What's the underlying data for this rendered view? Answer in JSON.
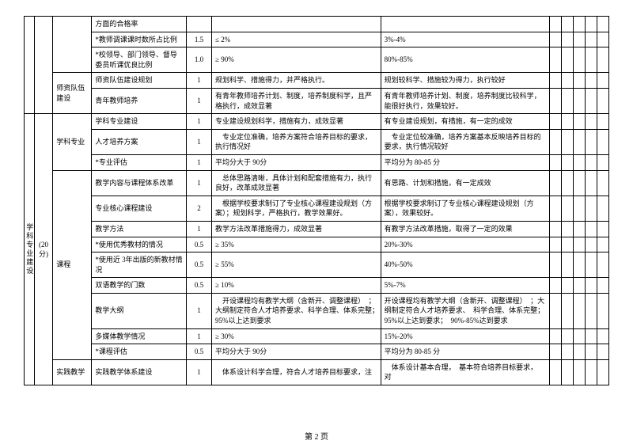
{
  "side_label1": "学科专业建设",
  "side_label2": "(20 分)",
  "groups": [
    {
      "cat": "",
      "rows": [
        {
          "name": "方面的合格率",
          "score": "",
          "colA": "",
          "colB": ""
        },
        {
          "name": "*教师调课课时数所占比例",
          "score": "1.5",
          "colA": "≤ 2%",
          "colB": "3%-4%"
        },
        {
          "name": "*校领导、部门领导、督导委员听课优良比例",
          "score": "1.0",
          "colA": "≥ 90%",
          "colB": "80%-85%"
        }
      ]
    },
    {
      "cat": "师资队伍建设",
      "rows": [
        {
          "name": "师资队伍建设规划",
          "score": "1",
          "colA": "规划科学、措施得力，并严格执行。",
          "colB": "规划较科学、措施较为得力，执行较好"
        },
        {
          "name": "青年教师培养",
          "score": "1",
          "colA": "有青年教师培养计划、制度，培养制度科学，且严格执行，成效显著",
          "colB": "有青年教师培养计划、制度，培养制度比较科学，能很好执行，效果较好。"
        }
      ]
    },
    {
      "cat": "学科专业",
      "rows": [
        {
          "name": "学科专业建设",
          "score": "1",
          "colA": "专业建设规划科学，措施有力，成效显著",
          "colB": "有专业建设规划，有措施，有一定的成效"
        },
        {
          "name": "人才培养方案",
          "score": "1",
          "colA": "　专业定位准确，培养方案符合培养目标的要求，执行情况好",
          "colB": "　专业定位较准确，培养方案基本反映培养目标的要求，执行情况较好"
        },
        {
          "name": "*专业评估",
          "score": "1",
          "colA": "平均分大于  90分",
          "colB": "平均分为  80-85 分"
        }
      ]
    },
    {
      "cat": "课程",
      "rows": [
        {
          "name": "教学内容与课程体系改革",
          "score": "1",
          "colA": "　总体思路清晰，具体计划和配套措施有力，执行良好，改革成效显著",
          "colB": "有思路、计划和措施，有一定成效"
        },
        {
          "name": "专业核心课程建设",
          "score": "2",
          "colA": "　根据学校要求制订了专业核心课程建设规划（方案）；规划科学，严格执行，教学效果好。",
          "colB": "根据学校要求制订了专业核心课程建设规划（方案），效果较好。"
        },
        {
          "name": "教学方法",
          "score": "1",
          "colA": "教学方法改革措施得力，成效显著",
          "colB": "有教学方法改革措施，取得了一定的效果"
        },
        {
          "name": "*使用优秀教材的情况",
          "score": "0.5",
          "colA": "≥ 35%",
          "colB": "20%-30%"
        },
        {
          "name": "*使用近 3年出版的新教材情况",
          "score": "0.5",
          "colA": "≥ 55%",
          "colB": "40%-50%"
        },
        {
          "name": "双语教学的门数",
          "score": "0.5",
          "colA": "≥ 10%",
          "colB": "5%-7%"
        },
        {
          "name": "教学大纲",
          "score": "1",
          "colA": "　开设课程均有教学大纲（含新开、调整课程）　；大纲制定符合人才培养要求、科学合理、体系完整；　95%以上达到要求",
          "colB": "开设课程均有教学大纲（含新开、调整课程）　；大纲制定符合人才培养要求、　科学合理、体系完整；95%以上达到要求；　90%-85%达到要求"
        },
        {
          "name": "多媒体教学情况",
          "score": "1",
          "colA": "≥ 30%",
          "colB": "15%-20%"
        },
        {
          "name": "*课程评估",
          "score": "0.5",
          "colA": "平均分大于  90分",
          "colB": "平均分为  80-85 分"
        }
      ]
    },
    {
      "cat": "实践教学",
      "rows": [
        {
          "name": "实践教学体系建设",
          "score": "1",
          "colA": "　体系设计科学合理，符合人才培养目标要求，注",
          "colB": "　体系设计基本合理，　基本符合培养目标要求，　对"
        }
      ]
    }
  ],
  "footer": "第  2 页"
}
